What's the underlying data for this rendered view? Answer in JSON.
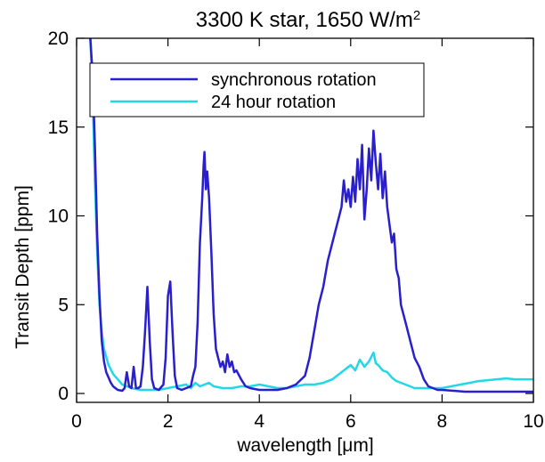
{
  "chart_data": {
    "type": "line",
    "title": "3300 K star, 1650 W/m",
    "title_superscript": "2",
    "xlabel_prefix": "wavelength [",
    "xlabel_mu": "μ",
    "xlabel_suffix": "m]",
    "ylabel": "Transit Depth [ppm]",
    "xlim": [
      0,
      10
    ],
    "ylim": [
      -0.5,
      20
    ],
    "x_ticks": [
      0,
      2,
      4,
      6,
      8,
      10
    ],
    "y_ticks": [
      0,
      5,
      10,
      15,
      20
    ],
    "x_tick_labels": [
      "0",
      "2",
      "4",
      "6",
      "8",
      "10"
    ],
    "y_tick_labels": [
      "0",
      "5",
      "10",
      "15",
      "20"
    ],
    "grid": false,
    "legend_position": "top-left",
    "series": [
      {
        "name": "synchronous rotation",
        "color": "#2a1fcc",
        "x": [
          0.3,
          0.35,
          0.4,
          0.45,
          0.5,
          0.55,
          0.6,
          0.65,
          0.7,
          0.75,
          0.8,
          0.9,
          1.0,
          1.05,
          1.1,
          1.15,
          1.2,
          1.25,
          1.3,
          1.35,
          1.4,
          1.45,
          1.5,
          1.55,
          1.6,
          1.65,
          1.7,
          1.8,
          1.9,
          1.95,
          2.0,
          2.05,
          2.1,
          2.15,
          2.2,
          2.3,
          2.4,
          2.5,
          2.55,
          2.6,
          2.65,
          2.7,
          2.75,
          2.78,
          2.8,
          2.83,
          2.86,
          2.9,
          2.95,
          3.0,
          3.05,
          3.1,
          3.15,
          3.2,
          3.25,
          3.3,
          3.35,
          3.4,
          3.45,
          3.5,
          3.6,
          3.7,
          3.8,
          4.0,
          4.2,
          4.4,
          4.6,
          4.8,
          5.0,
          5.1,
          5.2,
          5.3,
          5.4,
          5.5,
          5.6,
          5.7,
          5.8,
          5.85,
          5.9,
          5.95,
          6.0,
          6.05,
          6.1,
          6.15,
          6.2,
          6.25,
          6.3,
          6.35,
          6.4,
          6.45,
          6.5,
          6.55,
          6.6,
          6.65,
          6.7,
          6.75,
          6.8,
          6.85,
          6.9,
          6.95,
          7.0,
          7.05,
          7.1,
          7.2,
          7.3,
          7.4,
          7.5,
          7.6,
          7.7,
          7.8,
          7.9,
          8.0,
          8.5,
          9.0,
          9.5,
          10.0
        ],
        "y": [
          20,
          18,
          14,
          9,
          5.5,
          3,
          1.8,
          1.2,
          0.9,
          0.6,
          0.4,
          0.2,
          0.15,
          0.3,
          1.2,
          0.4,
          0.3,
          1.5,
          0.3,
          0.3,
          0.4,
          1.5,
          3.5,
          6.0,
          3.0,
          0.8,
          0.3,
          0.2,
          0.5,
          2.0,
          5.5,
          6.3,
          3.5,
          1.0,
          0.3,
          0.2,
          0.3,
          0.4,
          1.0,
          1.5,
          4.0,
          8.5,
          11.0,
          12.8,
          13.6,
          11.5,
          12.5,
          11.0,
          8.0,
          4.5,
          2.5,
          2.0,
          1.5,
          1.8,
          1.2,
          2.2,
          1.5,
          1.8,
          1.2,
          1.3,
          0.8,
          0.4,
          0.3,
          0.2,
          0.2,
          0.2,
          0.3,
          0.5,
          1.0,
          2.0,
          3.5,
          5.0,
          6.0,
          7.5,
          8.5,
          9.5,
          10.5,
          12.0,
          10.8,
          11.5,
          10.5,
          12.2,
          10.8,
          13.2,
          11.5,
          14.0,
          9.8,
          11.5,
          13.8,
          12.0,
          14.8,
          13.0,
          11.5,
          13.5,
          11.0,
          12.5,
          10.5,
          9.5,
          8.5,
          9.0,
          7.0,
          6.5,
          5.0,
          4.0,
          3.0,
          2.0,
          1.5,
          0.8,
          0.4,
          0.3,
          0.2,
          0.2,
          0.1,
          0.1,
          0.1,
          0.1
        ],
        "notes": ""
      },
      {
        "name": "24 hour rotation",
        "color": "#22d8e8",
        "x": [
          0.3,
          0.35,
          0.4,
          0.45,
          0.5,
          0.55,
          0.6,
          0.7,
          0.8,
          0.9,
          1.0,
          1.2,
          1.4,
          1.6,
          1.8,
          2.0,
          2.2,
          2.4,
          2.5,
          2.6,
          2.7,
          2.8,
          2.9,
          3.0,
          3.2,
          3.4,
          3.6,
          3.8,
          4.0,
          4.2,
          4.4,
          4.6,
          4.8,
          5.0,
          5.2,
          5.4,
          5.6,
          5.8,
          6.0,
          6.1,
          6.2,
          6.3,
          6.4,
          6.5,
          6.55,
          6.6,
          6.7,
          6.8,
          6.9,
          7.0,
          7.2,
          7.4,
          7.6,
          7.8,
          8.0,
          8.2,
          8.4,
          8.6,
          8.8,
          9.0,
          9.2,
          9.4,
          9.6,
          9.8,
          10.0
        ],
        "y": [
          20,
          17,
          12,
          8,
          5,
          3.5,
          2.5,
          1.6,
          1.1,
          0.8,
          0.5,
          0.3,
          0.2,
          0.2,
          0.2,
          0.3,
          0.4,
          0.5,
          0.3,
          0.6,
          0.4,
          0.5,
          0.6,
          0.4,
          0.3,
          0.3,
          0.4,
          0.4,
          0.5,
          0.4,
          0.3,
          0.3,
          0.4,
          0.5,
          0.5,
          0.6,
          0.8,
          1.2,
          1.6,
          1.3,
          1.9,
          1.5,
          1.8,
          2.3,
          1.7,
          1.6,
          1.3,
          1.2,
          0.9,
          0.7,
          0.5,
          0.3,
          0.3,
          0.3,
          0.3,
          0.4,
          0.5,
          0.6,
          0.7,
          0.75,
          0.8,
          0.85,
          0.8,
          0.8,
          0.8
        ]
      }
    ]
  }
}
